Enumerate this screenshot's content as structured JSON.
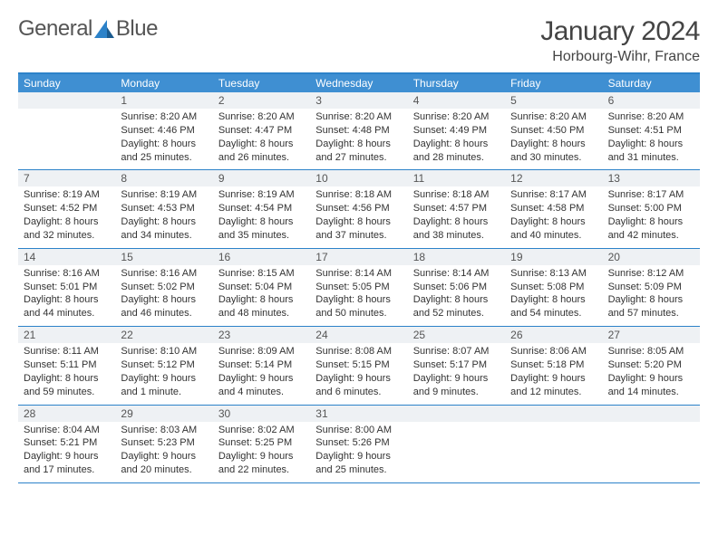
{
  "brand": {
    "word1": "General",
    "word2": "Blue"
  },
  "title": "January 2024",
  "subtitle": "Horbourg-Wihr, France",
  "colors": {
    "header_bg": "#3f8fd2",
    "border": "#2c82c9",
    "daybar_bg": "#eef1f4",
    "text": "#333333",
    "title_text": "#444444",
    "bg": "#ffffff"
  },
  "day_names": [
    "Sunday",
    "Monday",
    "Tuesday",
    "Wednesday",
    "Thursday",
    "Friday",
    "Saturday"
  ],
  "grid": {
    "start_offset": 1,
    "days_in_month": 31
  },
  "days": {
    "1": {
      "sunrise": "8:20 AM",
      "sunset": "4:46 PM",
      "daylight": "8 hours and 25 minutes."
    },
    "2": {
      "sunrise": "8:20 AM",
      "sunset": "4:47 PM",
      "daylight": "8 hours and 26 minutes."
    },
    "3": {
      "sunrise": "8:20 AM",
      "sunset": "4:48 PM",
      "daylight": "8 hours and 27 minutes."
    },
    "4": {
      "sunrise": "8:20 AM",
      "sunset": "4:49 PM",
      "daylight": "8 hours and 28 minutes."
    },
    "5": {
      "sunrise": "8:20 AM",
      "sunset": "4:50 PM",
      "daylight": "8 hours and 30 minutes."
    },
    "6": {
      "sunrise": "8:20 AM",
      "sunset": "4:51 PM",
      "daylight": "8 hours and 31 minutes."
    },
    "7": {
      "sunrise": "8:19 AM",
      "sunset": "4:52 PM",
      "daylight": "8 hours and 32 minutes."
    },
    "8": {
      "sunrise": "8:19 AM",
      "sunset": "4:53 PM",
      "daylight": "8 hours and 34 minutes."
    },
    "9": {
      "sunrise": "8:19 AM",
      "sunset": "4:54 PM",
      "daylight": "8 hours and 35 minutes."
    },
    "10": {
      "sunrise": "8:18 AM",
      "sunset": "4:56 PM",
      "daylight": "8 hours and 37 minutes."
    },
    "11": {
      "sunrise": "8:18 AM",
      "sunset": "4:57 PM",
      "daylight": "8 hours and 38 minutes."
    },
    "12": {
      "sunrise": "8:17 AM",
      "sunset": "4:58 PM",
      "daylight": "8 hours and 40 minutes."
    },
    "13": {
      "sunrise": "8:17 AM",
      "sunset": "5:00 PM",
      "daylight": "8 hours and 42 minutes."
    },
    "14": {
      "sunrise": "8:16 AM",
      "sunset": "5:01 PM",
      "daylight": "8 hours and 44 minutes."
    },
    "15": {
      "sunrise": "8:16 AM",
      "sunset": "5:02 PM",
      "daylight": "8 hours and 46 minutes."
    },
    "16": {
      "sunrise": "8:15 AM",
      "sunset": "5:04 PM",
      "daylight": "8 hours and 48 minutes."
    },
    "17": {
      "sunrise": "8:14 AM",
      "sunset": "5:05 PM",
      "daylight": "8 hours and 50 minutes."
    },
    "18": {
      "sunrise": "8:14 AM",
      "sunset": "5:06 PM",
      "daylight": "8 hours and 52 minutes."
    },
    "19": {
      "sunrise": "8:13 AM",
      "sunset": "5:08 PM",
      "daylight": "8 hours and 54 minutes."
    },
    "20": {
      "sunrise": "8:12 AM",
      "sunset": "5:09 PM",
      "daylight": "8 hours and 57 minutes."
    },
    "21": {
      "sunrise": "8:11 AM",
      "sunset": "5:11 PM",
      "daylight": "8 hours and 59 minutes."
    },
    "22": {
      "sunrise": "8:10 AM",
      "sunset": "5:12 PM",
      "daylight": "9 hours and 1 minute."
    },
    "23": {
      "sunrise": "8:09 AM",
      "sunset": "5:14 PM",
      "daylight": "9 hours and 4 minutes."
    },
    "24": {
      "sunrise": "8:08 AM",
      "sunset": "5:15 PM",
      "daylight": "9 hours and 6 minutes."
    },
    "25": {
      "sunrise": "8:07 AM",
      "sunset": "5:17 PM",
      "daylight": "9 hours and 9 minutes."
    },
    "26": {
      "sunrise": "8:06 AM",
      "sunset": "5:18 PM",
      "daylight": "9 hours and 12 minutes."
    },
    "27": {
      "sunrise": "8:05 AM",
      "sunset": "5:20 PM",
      "daylight": "9 hours and 14 minutes."
    },
    "28": {
      "sunrise": "8:04 AM",
      "sunset": "5:21 PM",
      "daylight": "9 hours and 17 minutes."
    },
    "29": {
      "sunrise": "8:03 AM",
      "sunset": "5:23 PM",
      "daylight": "9 hours and 20 minutes."
    },
    "30": {
      "sunrise": "8:02 AM",
      "sunset": "5:25 PM",
      "daylight": "9 hours and 22 minutes."
    },
    "31": {
      "sunrise": "8:00 AM",
      "sunset": "5:26 PM",
      "daylight": "9 hours and 25 minutes."
    }
  },
  "labels": {
    "sunrise": "Sunrise: ",
    "sunset": "Sunset: ",
    "daylight": "Daylight: "
  }
}
